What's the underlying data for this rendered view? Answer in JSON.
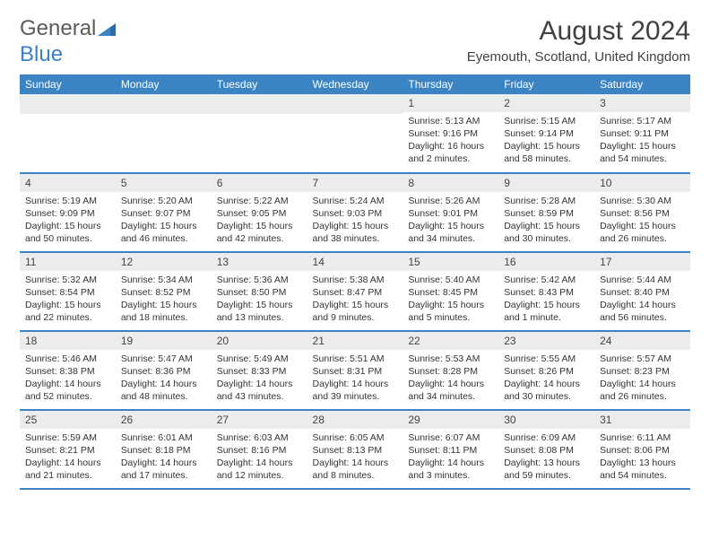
{
  "logo": {
    "text1": "General",
    "text2": "Blue"
  },
  "title": "August 2024",
  "location": "Eyemouth, Scotland, United Kingdom",
  "colors": {
    "header_bg": "#3b84c4",
    "header_text": "#ffffff",
    "daynum_bg": "#ececec",
    "border": "#3b84c4",
    "text": "#333333",
    "title_text": "#404040"
  },
  "day_headers": [
    "Sunday",
    "Monday",
    "Tuesday",
    "Wednesday",
    "Thursday",
    "Friday",
    "Saturday"
  ],
  "weeks": [
    [
      null,
      null,
      null,
      null,
      {
        "n": "1",
        "sr": "5:13 AM",
        "ss": "9:16 PM",
        "dl": "16 hours and 2 minutes."
      },
      {
        "n": "2",
        "sr": "5:15 AM",
        "ss": "9:14 PM",
        "dl": "15 hours and 58 minutes."
      },
      {
        "n": "3",
        "sr": "5:17 AM",
        "ss": "9:11 PM",
        "dl": "15 hours and 54 minutes."
      }
    ],
    [
      {
        "n": "4",
        "sr": "5:19 AM",
        "ss": "9:09 PM",
        "dl": "15 hours and 50 minutes."
      },
      {
        "n": "5",
        "sr": "5:20 AM",
        "ss": "9:07 PM",
        "dl": "15 hours and 46 minutes."
      },
      {
        "n": "6",
        "sr": "5:22 AM",
        "ss": "9:05 PM",
        "dl": "15 hours and 42 minutes."
      },
      {
        "n": "7",
        "sr": "5:24 AM",
        "ss": "9:03 PM",
        "dl": "15 hours and 38 minutes."
      },
      {
        "n": "8",
        "sr": "5:26 AM",
        "ss": "9:01 PM",
        "dl": "15 hours and 34 minutes."
      },
      {
        "n": "9",
        "sr": "5:28 AM",
        "ss": "8:59 PM",
        "dl": "15 hours and 30 minutes."
      },
      {
        "n": "10",
        "sr": "5:30 AM",
        "ss": "8:56 PM",
        "dl": "15 hours and 26 minutes."
      }
    ],
    [
      {
        "n": "11",
        "sr": "5:32 AM",
        "ss": "8:54 PM",
        "dl": "15 hours and 22 minutes."
      },
      {
        "n": "12",
        "sr": "5:34 AM",
        "ss": "8:52 PM",
        "dl": "15 hours and 18 minutes."
      },
      {
        "n": "13",
        "sr": "5:36 AM",
        "ss": "8:50 PM",
        "dl": "15 hours and 13 minutes."
      },
      {
        "n": "14",
        "sr": "5:38 AM",
        "ss": "8:47 PM",
        "dl": "15 hours and 9 minutes."
      },
      {
        "n": "15",
        "sr": "5:40 AM",
        "ss": "8:45 PM",
        "dl": "15 hours and 5 minutes."
      },
      {
        "n": "16",
        "sr": "5:42 AM",
        "ss": "8:43 PM",
        "dl": "15 hours and 1 minute."
      },
      {
        "n": "17",
        "sr": "5:44 AM",
        "ss": "8:40 PM",
        "dl": "14 hours and 56 minutes."
      }
    ],
    [
      {
        "n": "18",
        "sr": "5:46 AM",
        "ss": "8:38 PM",
        "dl": "14 hours and 52 minutes."
      },
      {
        "n": "19",
        "sr": "5:47 AM",
        "ss": "8:36 PM",
        "dl": "14 hours and 48 minutes."
      },
      {
        "n": "20",
        "sr": "5:49 AM",
        "ss": "8:33 PM",
        "dl": "14 hours and 43 minutes."
      },
      {
        "n": "21",
        "sr": "5:51 AM",
        "ss": "8:31 PM",
        "dl": "14 hours and 39 minutes."
      },
      {
        "n": "22",
        "sr": "5:53 AM",
        "ss": "8:28 PM",
        "dl": "14 hours and 34 minutes."
      },
      {
        "n": "23",
        "sr": "5:55 AM",
        "ss": "8:26 PM",
        "dl": "14 hours and 30 minutes."
      },
      {
        "n": "24",
        "sr": "5:57 AM",
        "ss": "8:23 PM",
        "dl": "14 hours and 26 minutes."
      }
    ],
    [
      {
        "n": "25",
        "sr": "5:59 AM",
        "ss": "8:21 PM",
        "dl": "14 hours and 21 minutes."
      },
      {
        "n": "26",
        "sr": "6:01 AM",
        "ss": "8:18 PM",
        "dl": "14 hours and 17 minutes."
      },
      {
        "n": "27",
        "sr": "6:03 AM",
        "ss": "8:16 PM",
        "dl": "14 hours and 12 minutes."
      },
      {
        "n": "28",
        "sr": "6:05 AM",
        "ss": "8:13 PM",
        "dl": "14 hours and 8 minutes."
      },
      {
        "n": "29",
        "sr": "6:07 AM",
        "ss": "8:11 PM",
        "dl": "14 hours and 3 minutes."
      },
      {
        "n": "30",
        "sr": "6:09 AM",
        "ss": "8:08 PM",
        "dl": "13 hours and 59 minutes."
      },
      {
        "n": "31",
        "sr": "6:11 AM",
        "ss": "8:06 PM",
        "dl": "13 hours and 54 minutes."
      }
    ]
  ],
  "labels": {
    "sunrise": "Sunrise: ",
    "sunset": "Sunset: ",
    "daylight": "Daylight: "
  }
}
